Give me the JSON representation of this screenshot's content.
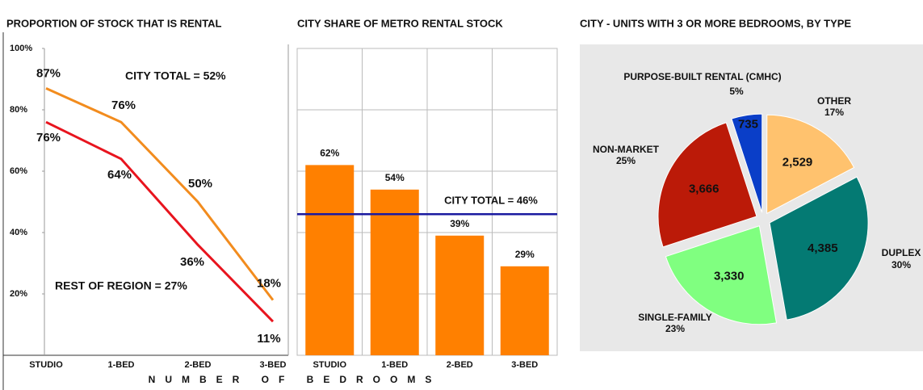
{
  "chart_data": [
    {
      "type": "line",
      "title": "PROPORTION OF STOCK THAT IS RENTAL",
      "categories": [
        "STUDIO",
        "1-BED",
        "2-BED",
        "3-BED"
      ],
      "series": [
        {
          "color": "#f28c1e",
          "values": [
            87,
            76,
            50,
            18
          ],
          "value_labels": [
            "87%",
            "76%",
            "50%",
            "18%"
          ]
        },
        {
          "color": "#e8141e",
          "values": [
            76,
            64,
            36,
            11
          ],
          "value_labels": [
            "76%",
            "64%",
            "36%",
            "11%"
          ]
        }
      ],
      "annotations": [
        {
          "text": "CITY TOTAL = 52%",
          "color": "#f28c1e"
        },
        {
          "text": "REST OF REGION = 27%",
          "color": "#e8141e"
        }
      ],
      "ylim": [
        0,
        100
      ],
      "yticks": [
        {
          "value": 20,
          "label": "20%"
        },
        {
          "value": 40,
          "label": "40%"
        },
        {
          "value": 60,
          "label": "60%"
        },
        {
          "value": 80,
          "label": "80%"
        },
        {
          "value": 100,
          "label": "100%"
        }
      ],
      "xlabel": "NUMBER OF BEDROOMS"
    },
    {
      "type": "bar",
      "title": "CITY SHARE OF METRO RENTAL STOCK",
      "categories": [
        "STUDIO",
        "1-BED",
        "2-BED",
        "3-BED"
      ],
      "values": [
        62,
        54,
        39,
        29
      ],
      "value_labels": [
        "62%",
        "54%",
        "39%",
        "29%"
      ],
      "color": "#ff8000",
      "ylim": [
        0,
        100
      ],
      "grid_lines": [
        20,
        40,
        60,
        80
      ],
      "reference_line": {
        "value": 46,
        "label": "CITY TOTAL = 46%",
        "color": "#1a1aa0"
      }
    },
    {
      "type": "pie",
      "title": "CITY - UNITS WITH 3 OR MORE BEDROOMS, BY TYPE",
      "labels": [
        "PURPOSE-BUILT RENTAL (CMHC)",
        "OTHER",
        "DUPLEX",
        "SINGLE-FAMILY",
        "NON-MARKET"
      ],
      "values": [
        735,
        2529,
        4385,
        3330,
        3666
      ],
      "value_labels": [
        "735",
        "2,529",
        "4,385",
        "3,330",
        "3,666"
      ],
      "percents": [
        5,
        17,
        30,
        23,
        25
      ],
      "percent_labels": [
        "5%",
        "17%",
        "30%",
        "23%",
        "25%"
      ],
      "colors": [
        "#0a3ec8",
        "#ffc26e",
        "#047a73",
        "#80ff80",
        "#bb1a08"
      ]
    }
  ]
}
